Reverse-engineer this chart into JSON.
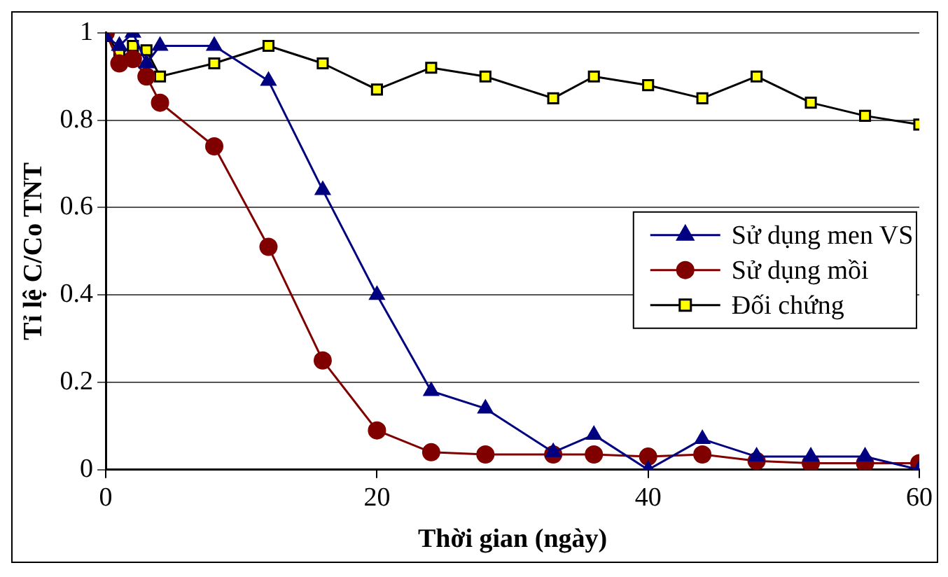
{
  "chart_data": {
    "type": "line",
    "xlabel": "Thời gian (ngày)",
    "ylabel": "Tỉ lệ C/Co TNT",
    "x": [
      0,
      1,
      2,
      3,
      4,
      8,
      12,
      16,
      20,
      24,
      28,
      33,
      36,
      40,
      44,
      48,
      52,
      56,
      60
    ],
    "xlim": [
      0,
      60
    ],
    "xticks": [
      0,
      20,
      40,
      60
    ],
    "ylim": [
      0,
      1
    ],
    "yticks": [
      0,
      0.2,
      0.4,
      0.6,
      0.8,
      1
    ],
    "grid": "y",
    "legend": "right",
    "series": [
      {
        "name": "Sử dụng men VS",
        "color": "#000080",
        "marker": "triangle",
        "values": [
          0.99,
          0.97,
          1.0,
          0.93,
          0.97,
          0.97,
          0.89,
          0.64,
          0.4,
          0.18,
          0.14,
          0.04,
          0.08,
          0.0,
          0.07,
          0.03,
          0.03,
          0.03,
          0.0
        ]
      },
      {
        "name": "Sử dụng mồi",
        "color": "#800000",
        "marker": "circle",
        "values": [
          1.0,
          0.93,
          0.94,
          0.9,
          0.84,
          0.74,
          0.51,
          0.25,
          0.09,
          0.04,
          0.035,
          0.035,
          0.035,
          0.03,
          0.035,
          0.02,
          0.015,
          0.015,
          0.015
        ]
      },
      {
        "name": "Đối chứng",
        "color": "#000000",
        "marker": "square",
        "values": [
          1.0,
          0.95,
          0.97,
          0.96,
          0.9,
          0.93,
          0.97,
          0.93,
          0.87,
          0.92,
          0.9,
          0.85,
          0.9,
          0.88,
          0.85,
          0.9,
          0.84,
          0.81,
          0.79
        ]
      }
    ]
  }
}
